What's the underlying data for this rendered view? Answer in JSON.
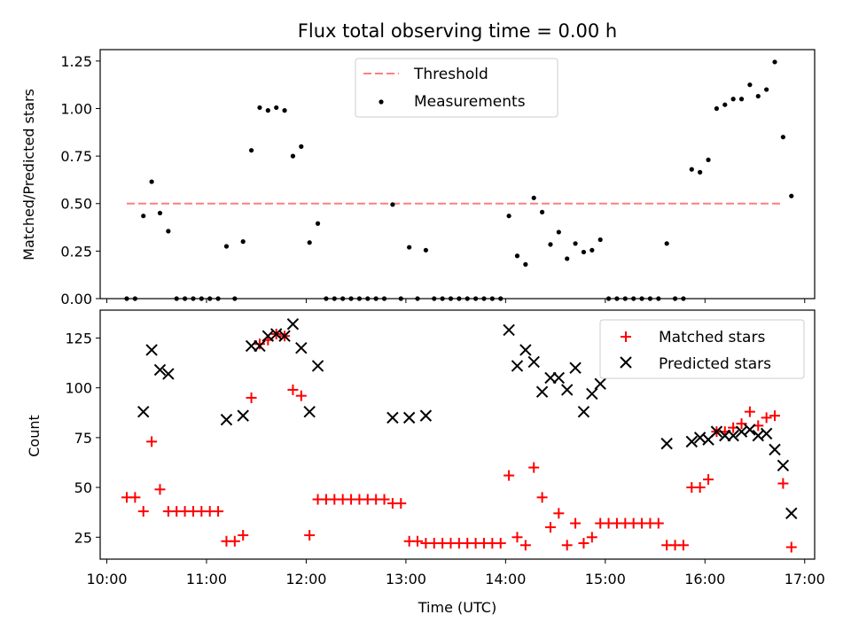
{
  "figure_title": "Flux total observing time = 0.00 h",
  "colors": {
    "threshold": "#ff7f7f",
    "measurement": "#000000",
    "matched": "#ff0000",
    "predicted": "#000000",
    "axes": "#000000"
  },
  "chart_data": [
    {
      "type": "scatter",
      "title": "Flux total observing time = 0.00 h",
      "xlabel": "",
      "ylabel": "Matched/Predicted stars",
      "xlim": [
        "09:56",
        "17:06"
      ],
      "ylim": [
        0,
        1.31
      ],
      "yticks": [
        0.0,
        0.25,
        0.5,
        0.75,
        1.0,
        1.25
      ],
      "ytick_labels": [
        "0.00",
        "0.25",
        "0.50",
        "0.75",
        "1.00",
        "1.25"
      ],
      "xticks": [
        "10:00",
        "11:00",
        "12:00",
        "13:00",
        "14:00",
        "15:00",
        "16:00",
        "17:00"
      ],
      "grid": false,
      "legend": {
        "placement": "upper center",
        "entries": [
          "Threshold",
          "Measurements"
        ]
      },
      "threshold": {
        "name": "Threshold",
        "y": 0.5,
        "x_start": "10:12",
        "x_end": "16:47"
      },
      "series": [
        {
          "name": "Measurements",
          "points": [
            [
              "10:12",
              0
            ],
            [
              "10:17",
              0
            ],
            [
              "10:22",
              0.435
            ],
            [
              "10:27",
              0.615
            ],
            [
              "10:32",
              0.45
            ],
            [
              "10:37",
              0.355
            ],
            [
              "10:42",
              0
            ],
            [
              "10:47",
              0
            ],
            [
              "10:52",
              0
            ],
            [
              "10:57",
              0
            ],
            [
              "11:02",
              0
            ],
            [
              "11:07",
              0
            ],
            [
              "11:12",
              0.275
            ],
            [
              "11:17",
              0
            ],
            [
              "11:22",
              0.3
            ],
            [
              "11:27",
              0.78
            ],
            [
              "11:32",
              1.005
            ],
            [
              "11:37",
              0.99
            ],
            [
              "11:42",
              1.005
            ],
            [
              "11:47",
              0.99
            ],
            [
              "11:52",
              0.75
            ],
            [
              "11:57",
              0.8
            ],
            [
              "12:02",
              0.295
            ],
            [
              "12:07",
              0.395
            ],
            [
              "12:12",
              0
            ],
            [
              "12:17",
              0
            ],
            [
              "12:22",
              0
            ],
            [
              "12:27",
              0
            ],
            [
              "12:32",
              0
            ],
            [
              "12:37",
              0
            ],
            [
              "12:42",
              0
            ],
            [
              "12:47",
              0
            ],
            [
              "12:52",
              0.495
            ],
            [
              "12:57",
              0
            ],
            [
              "13:02",
              0.27
            ],
            [
              "13:07",
              0
            ],
            [
              "13:12",
              0.255
            ],
            [
              "13:17",
              0
            ],
            [
              "13:22",
              0
            ],
            [
              "13:27",
              0
            ],
            [
              "13:32",
              0
            ],
            [
              "13:37",
              0
            ],
            [
              "13:42",
              0
            ],
            [
              "13:47",
              0
            ],
            [
              "13:52",
              0
            ],
            [
              "13:57",
              0
            ],
            [
              "14:02",
              0.435
            ],
            [
              "14:07",
              0.225
            ],
            [
              "14:12",
              0.18
            ],
            [
              "14:17",
              0.53
            ],
            [
              "14:22",
              0.455
            ],
            [
              "14:27",
              0.285
            ],
            [
              "14:32",
              0.35
            ],
            [
              "14:37",
              0.21
            ],
            [
              "14:42",
              0.29
            ],
            [
              "14:47",
              0.245
            ],
            [
              "14:52",
              0.255
            ],
            [
              "14:57",
              0.31
            ],
            [
              "15:02",
              0
            ],
            [
              "15:07",
              0
            ],
            [
              "15:12",
              0
            ],
            [
              "15:17",
              0
            ],
            [
              "15:22",
              0
            ],
            [
              "15:27",
              0
            ],
            [
              "15:32",
              0
            ],
            [
              "15:37",
              0.29
            ],
            [
              "15:42",
              0
            ],
            [
              "15:47",
              0
            ],
            [
              "15:52",
              0.68
            ],
            [
              "15:57",
              0.665
            ],
            [
              "16:02",
              0.73
            ],
            [
              "16:07",
              1.0
            ],
            [
              "16:12",
              1.02
            ],
            [
              "16:17",
              1.05
            ],
            [
              "16:22",
              1.05
            ],
            [
              "16:27",
              1.125
            ],
            [
              "16:32",
              1.065
            ],
            [
              "16:37",
              1.1
            ],
            [
              "16:42",
              1.245
            ],
            [
              "16:47",
              0.85
            ],
            [
              "16:52",
              0.54
            ]
          ]
        }
      ]
    },
    {
      "type": "scatter",
      "title": "",
      "xlabel": "Time (UTC)",
      "ylabel": "Count",
      "xlim": [
        "09:56",
        "17:06"
      ],
      "ylim": [
        14,
        139
      ],
      "yticks": [
        25,
        50,
        75,
        100,
        125
      ],
      "ytick_labels": [
        "25",
        "50",
        "75",
        "100",
        "125"
      ],
      "xticks": [
        "10:00",
        "11:00",
        "12:00",
        "13:00",
        "14:00",
        "15:00",
        "16:00",
        "17:00"
      ],
      "xtick_labels": [
        "10:00",
        "11:00",
        "12:00",
        "13:00",
        "14:00",
        "15:00",
        "16:00",
        "17:00"
      ],
      "grid": false,
      "legend": {
        "placement": "upper right",
        "entries": [
          "Matched stars",
          "Predicted stars"
        ]
      },
      "series": [
        {
          "name": "Matched stars",
          "marker": "+",
          "points": [
            [
              "10:12",
              45
            ],
            [
              "10:17",
              45
            ],
            [
              "10:22",
              38
            ],
            [
              "10:27",
              73
            ],
            [
              "10:32",
              49
            ],
            [
              "10:37",
              38
            ],
            [
              "10:42",
              38
            ],
            [
              "10:47",
              38
            ],
            [
              "10:52",
              38
            ],
            [
              "10:57",
              38
            ],
            [
              "11:02",
              38
            ],
            [
              "11:07",
              38
            ],
            [
              "11:12",
              23
            ],
            [
              "11:17",
              23
            ],
            [
              "11:22",
              26
            ],
            [
              "11:27",
              95
            ],
            [
              "11:32",
              122
            ],
            [
              "11:37",
              124
            ],
            [
              "11:42",
              127
            ],
            [
              "11:47",
              126
            ],
            [
              "11:52",
              99
            ],
            [
              "11:57",
              96
            ],
            [
              "12:02",
              26
            ],
            [
              "12:07",
              44
            ],
            [
              "12:12",
              44
            ],
            [
              "12:17",
              44
            ],
            [
              "12:22",
              44
            ],
            [
              "12:27",
              44
            ],
            [
              "12:32",
              44
            ],
            [
              "12:37",
              44
            ],
            [
              "12:42",
              44
            ],
            [
              "12:47",
              44
            ],
            [
              "12:52",
              42
            ],
            [
              "12:57",
              42
            ],
            [
              "13:02",
              23
            ],
            [
              "13:07",
              23
            ],
            [
              "13:12",
              22
            ],
            [
              "13:17",
              22
            ],
            [
              "13:22",
              22
            ],
            [
              "13:27",
              22
            ],
            [
              "13:32",
              22
            ],
            [
              "13:37",
              22
            ],
            [
              "13:42",
              22
            ],
            [
              "13:47",
              22
            ],
            [
              "13:52",
              22
            ],
            [
              "13:57",
              22
            ],
            [
              "14:02",
              56
            ],
            [
              "14:07",
              25
            ],
            [
              "14:12",
              21
            ],
            [
              "14:17",
              60
            ],
            [
              "14:22",
              45
            ],
            [
              "14:27",
              30
            ],
            [
              "14:32",
              37
            ],
            [
              "14:37",
              21
            ],
            [
              "14:42",
              32
            ],
            [
              "14:47",
              22
            ],
            [
              "14:52",
              25
            ],
            [
              "14:57",
              32
            ],
            [
              "15:02",
              32
            ],
            [
              "15:07",
              32
            ],
            [
              "15:12",
              32
            ],
            [
              "15:17",
              32
            ],
            [
              "15:22",
              32
            ],
            [
              "15:27",
              32
            ],
            [
              "15:32",
              32
            ],
            [
              "15:37",
              21
            ],
            [
              "15:42",
              21
            ],
            [
              "15:47",
              21
            ],
            [
              "15:52",
              50
            ],
            [
              "15:57",
              50
            ],
            [
              "16:02",
              54
            ],
            [
              "16:07",
              78
            ],
            [
              "16:12",
              78
            ],
            [
              "16:17",
              80
            ],
            [
              "16:22",
              82
            ],
            [
              "16:27",
              88
            ],
            [
              "16:32",
              81
            ],
            [
              "16:37",
              85
            ],
            [
              "16:42",
              86
            ],
            [
              "16:47",
              52
            ],
            [
              "16:52",
              20
            ]
          ]
        },
        {
          "name": "Predicted stars",
          "marker": "x",
          "points": [
            [
              "10:22",
              88
            ],
            [
              "10:27",
              119
            ],
            [
              "10:32",
              109
            ],
            [
              "10:37",
              107
            ],
            [
              "11:12",
              84
            ],
            [
              "11:22",
              86
            ],
            [
              "11:27",
              121
            ],
            [
              "11:32",
              121
            ],
            [
              "11:37",
              126
            ],
            [
              "11:42",
              127
            ],
            [
              "11:47",
              126
            ],
            [
              "11:52",
              132
            ],
            [
              "11:57",
              120
            ],
            [
              "12:02",
              88
            ],
            [
              "12:07",
              111
            ],
            [
              "12:52",
              85
            ],
            [
              "13:02",
              85
            ],
            [
              "13:12",
              86
            ],
            [
              "14:02",
              129
            ],
            [
              "14:07",
              111
            ],
            [
              "14:12",
              119
            ],
            [
              "14:17",
              113
            ],
            [
              "14:22",
              98
            ],
            [
              "14:27",
              105
            ],
            [
              "14:32",
              105
            ],
            [
              "14:37",
              99
            ],
            [
              "14:42",
              110
            ],
            [
              "14:47",
              88
            ],
            [
              "14:52",
              97
            ],
            [
              "14:57",
              102
            ],
            [
              "15:37",
              72
            ],
            [
              "15:52",
              73
            ],
            [
              "15:57",
              75
            ],
            [
              "16:02",
              74
            ],
            [
              "16:07",
              78
            ],
            [
              "16:12",
              76
            ],
            [
              "16:17",
              76
            ],
            [
              "16:22",
              78
            ],
            [
              "16:27",
              79
            ],
            [
              "16:32",
              76
            ],
            [
              "16:37",
              77
            ],
            [
              "16:42",
              69
            ],
            [
              "16:47",
              61
            ],
            [
              "16:52",
              37
            ]
          ]
        }
      ]
    }
  ]
}
